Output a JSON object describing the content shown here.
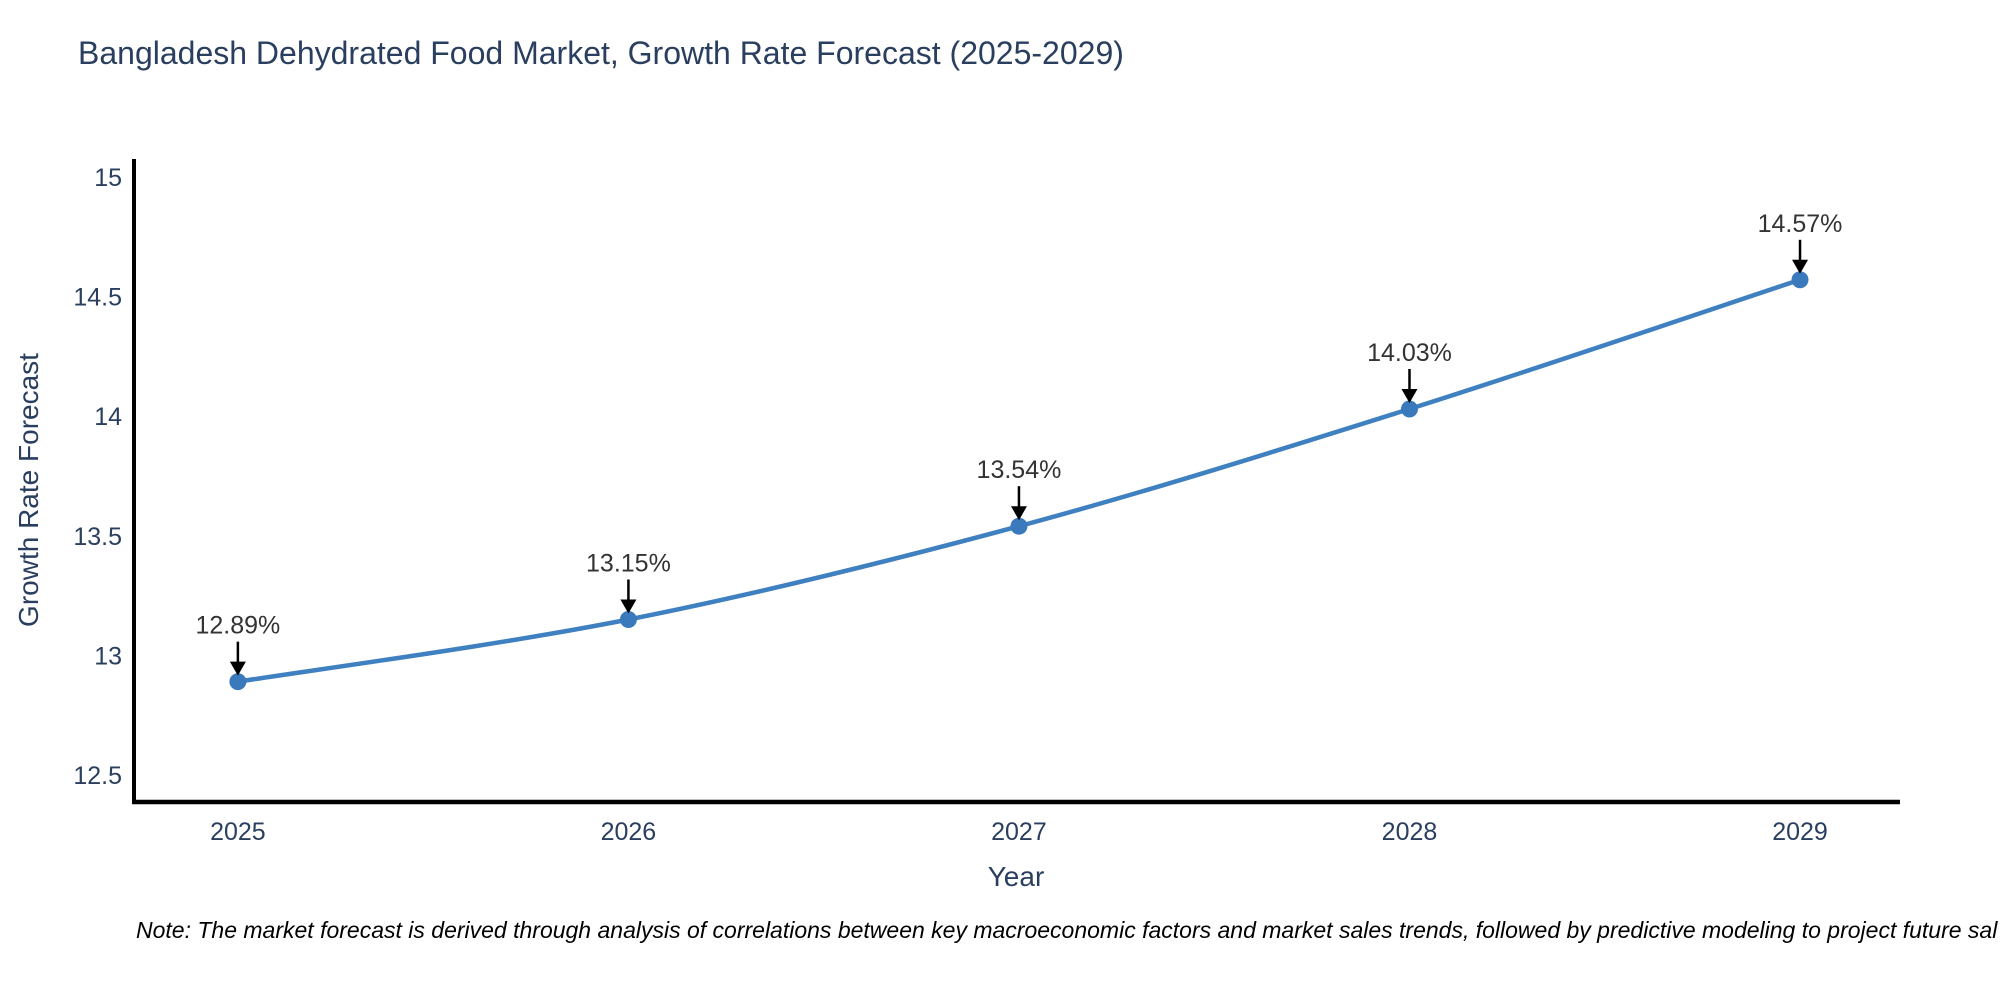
{
  "chart_data": {
    "type": "line",
    "title": "Bangladesh Dehydrated Food Market, Growth Rate Forecast (2025-2029)",
    "xlabel": "Year",
    "ylabel": "Growth Rate Forecast",
    "x": [
      2025,
      2026,
      2027,
      2028,
      2029
    ],
    "xtick_labels": [
      "2025",
      "2026",
      "2027",
      "2028",
      "2029"
    ],
    "values": [
      12.89,
      13.15,
      13.54,
      14.03,
      14.57
    ],
    "point_labels": [
      "12.89%",
      "13.15%",
      "13.54%",
      "14.03%",
      "14.57%"
    ],
    "yticks": [
      12.5,
      13,
      13.5,
      14,
      14.5,
      15
    ],
    "ytick_labels": [
      "12.5",
      "13",
      "13.5",
      "14",
      "14.5",
      "15"
    ],
    "xlim": [
      2024.734,
      2029.256
    ],
    "ylim": [
      12.387,
      15.075
    ],
    "grid": false,
    "legend": "none",
    "line_color": "#3f80c0",
    "marker_color": "#3a7abc",
    "axis_color": "#000000",
    "text_color": "#2a3f5f",
    "annotation_color": "#333333",
    "annotation_arrow_color": "#000000",
    "note": "Note: The market forecast is derived through analysis of correlations between key macroeconomic factors and market sales trends, followed by predictive modeling to project future sal"
  }
}
